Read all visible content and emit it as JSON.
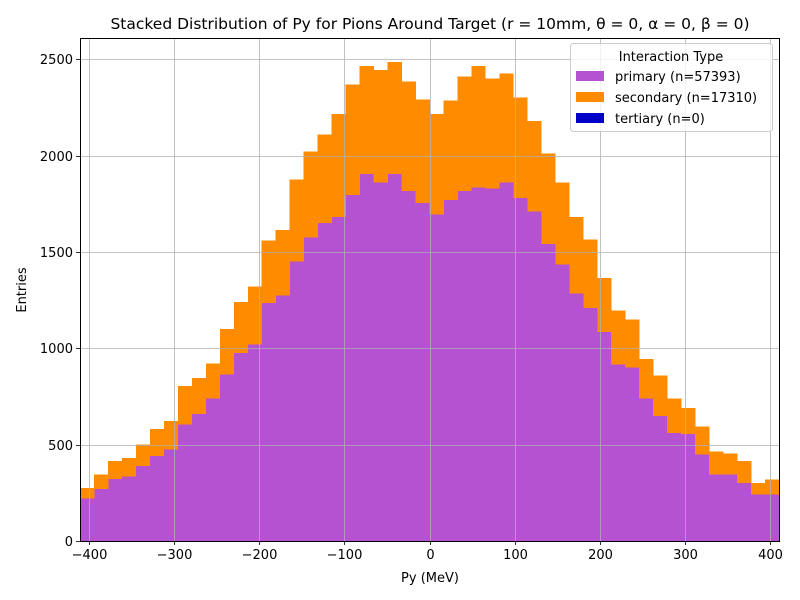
{
  "chart_data": {
    "type": "bar",
    "stacked": true,
    "title": "Stacked Distribution of Py for Pions Around Target (r = 10mm, θ = 0, α = 0, β = 0)",
    "xlabel": "Py (MeV)",
    "ylabel": "Entries",
    "xlim": [
      -410,
      410
    ],
    "ylim": [
      0,
      2610
    ],
    "xticks": [
      -400,
      -300,
      -200,
      -100,
      0,
      100,
      200,
      300,
      400
    ],
    "yticks": [
      0,
      500,
      1000,
      1500,
      2000,
      2500
    ],
    "grid": true,
    "bin_start": -410,
    "bin_width": 16.4,
    "legend": {
      "title": "Interaction Type",
      "placement": "top-right"
    },
    "series": [
      {
        "name": "primary (n=57393)",
        "color": "#b452d2",
        "values": [
          220,
          270,
          322,
          335,
          388,
          440,
          475,
          605,
          660,
          740,
          865,
          975,
          1020,
          1235,
          1275,
          1450,
          1575,
          1650,
          1680,
          1795,
          1905,
          1860,
          1905,
          1815,
          1755,
          1695,
          1770,
          1815,
          1835,
          1830,
          1860,
          1780,
          1710,
          1540,
          1435,
          1285,
          1210,
          1085,
          915,
          900,
          740,
          648,
          560,
          555,
          448,
          345,
          345,
          300,
          240,
          240
        ]
      },
      {
        "name": "secondary (n=17310)",
        "color": "#ff8c00",
        "values": [
          55,
          75,
          93,
          95,
          112,
          140,
          148,
          200,
          185,
          180,
          235,
          265,
          300,
          325,
          340,
          425,
          445,
          460,
          535,
          575,
          560,
          585,
          580,
          570,
          535,
          520,
          515,
          595,
          630,
          570,
          565,
          520,
          470,
          470,
          425,
          395,
          355,
          280,
          280,
          250,
          205,
          210,
          180,
          135,
          145,
          120,
          110,
          115,
          60,
          80
        ]
      },
      {
        "name": "tertiary (n=0)",
        "color": "#0000c8",
        "values": [
          0,
          0,
          0,
          0,
          0,
          0,
          0,
          0,
          0,
          0,
          0,
          0,
          0,
          0,
          0,
          0,
          0,
          0,
          0,
          0,
          0,
          0,
          0,
          0,
          0,
          0,
          0,
          0,
          0,
          0,
          0,
          0,
          0,
          0,
          0,
          0,
          0,
          0,
          0,
          0,
          0,
          0,
          0,
          0,
          0,
          0,
          0,
          0,
          0,
          0
        ]
      }
    ]
  }
}
